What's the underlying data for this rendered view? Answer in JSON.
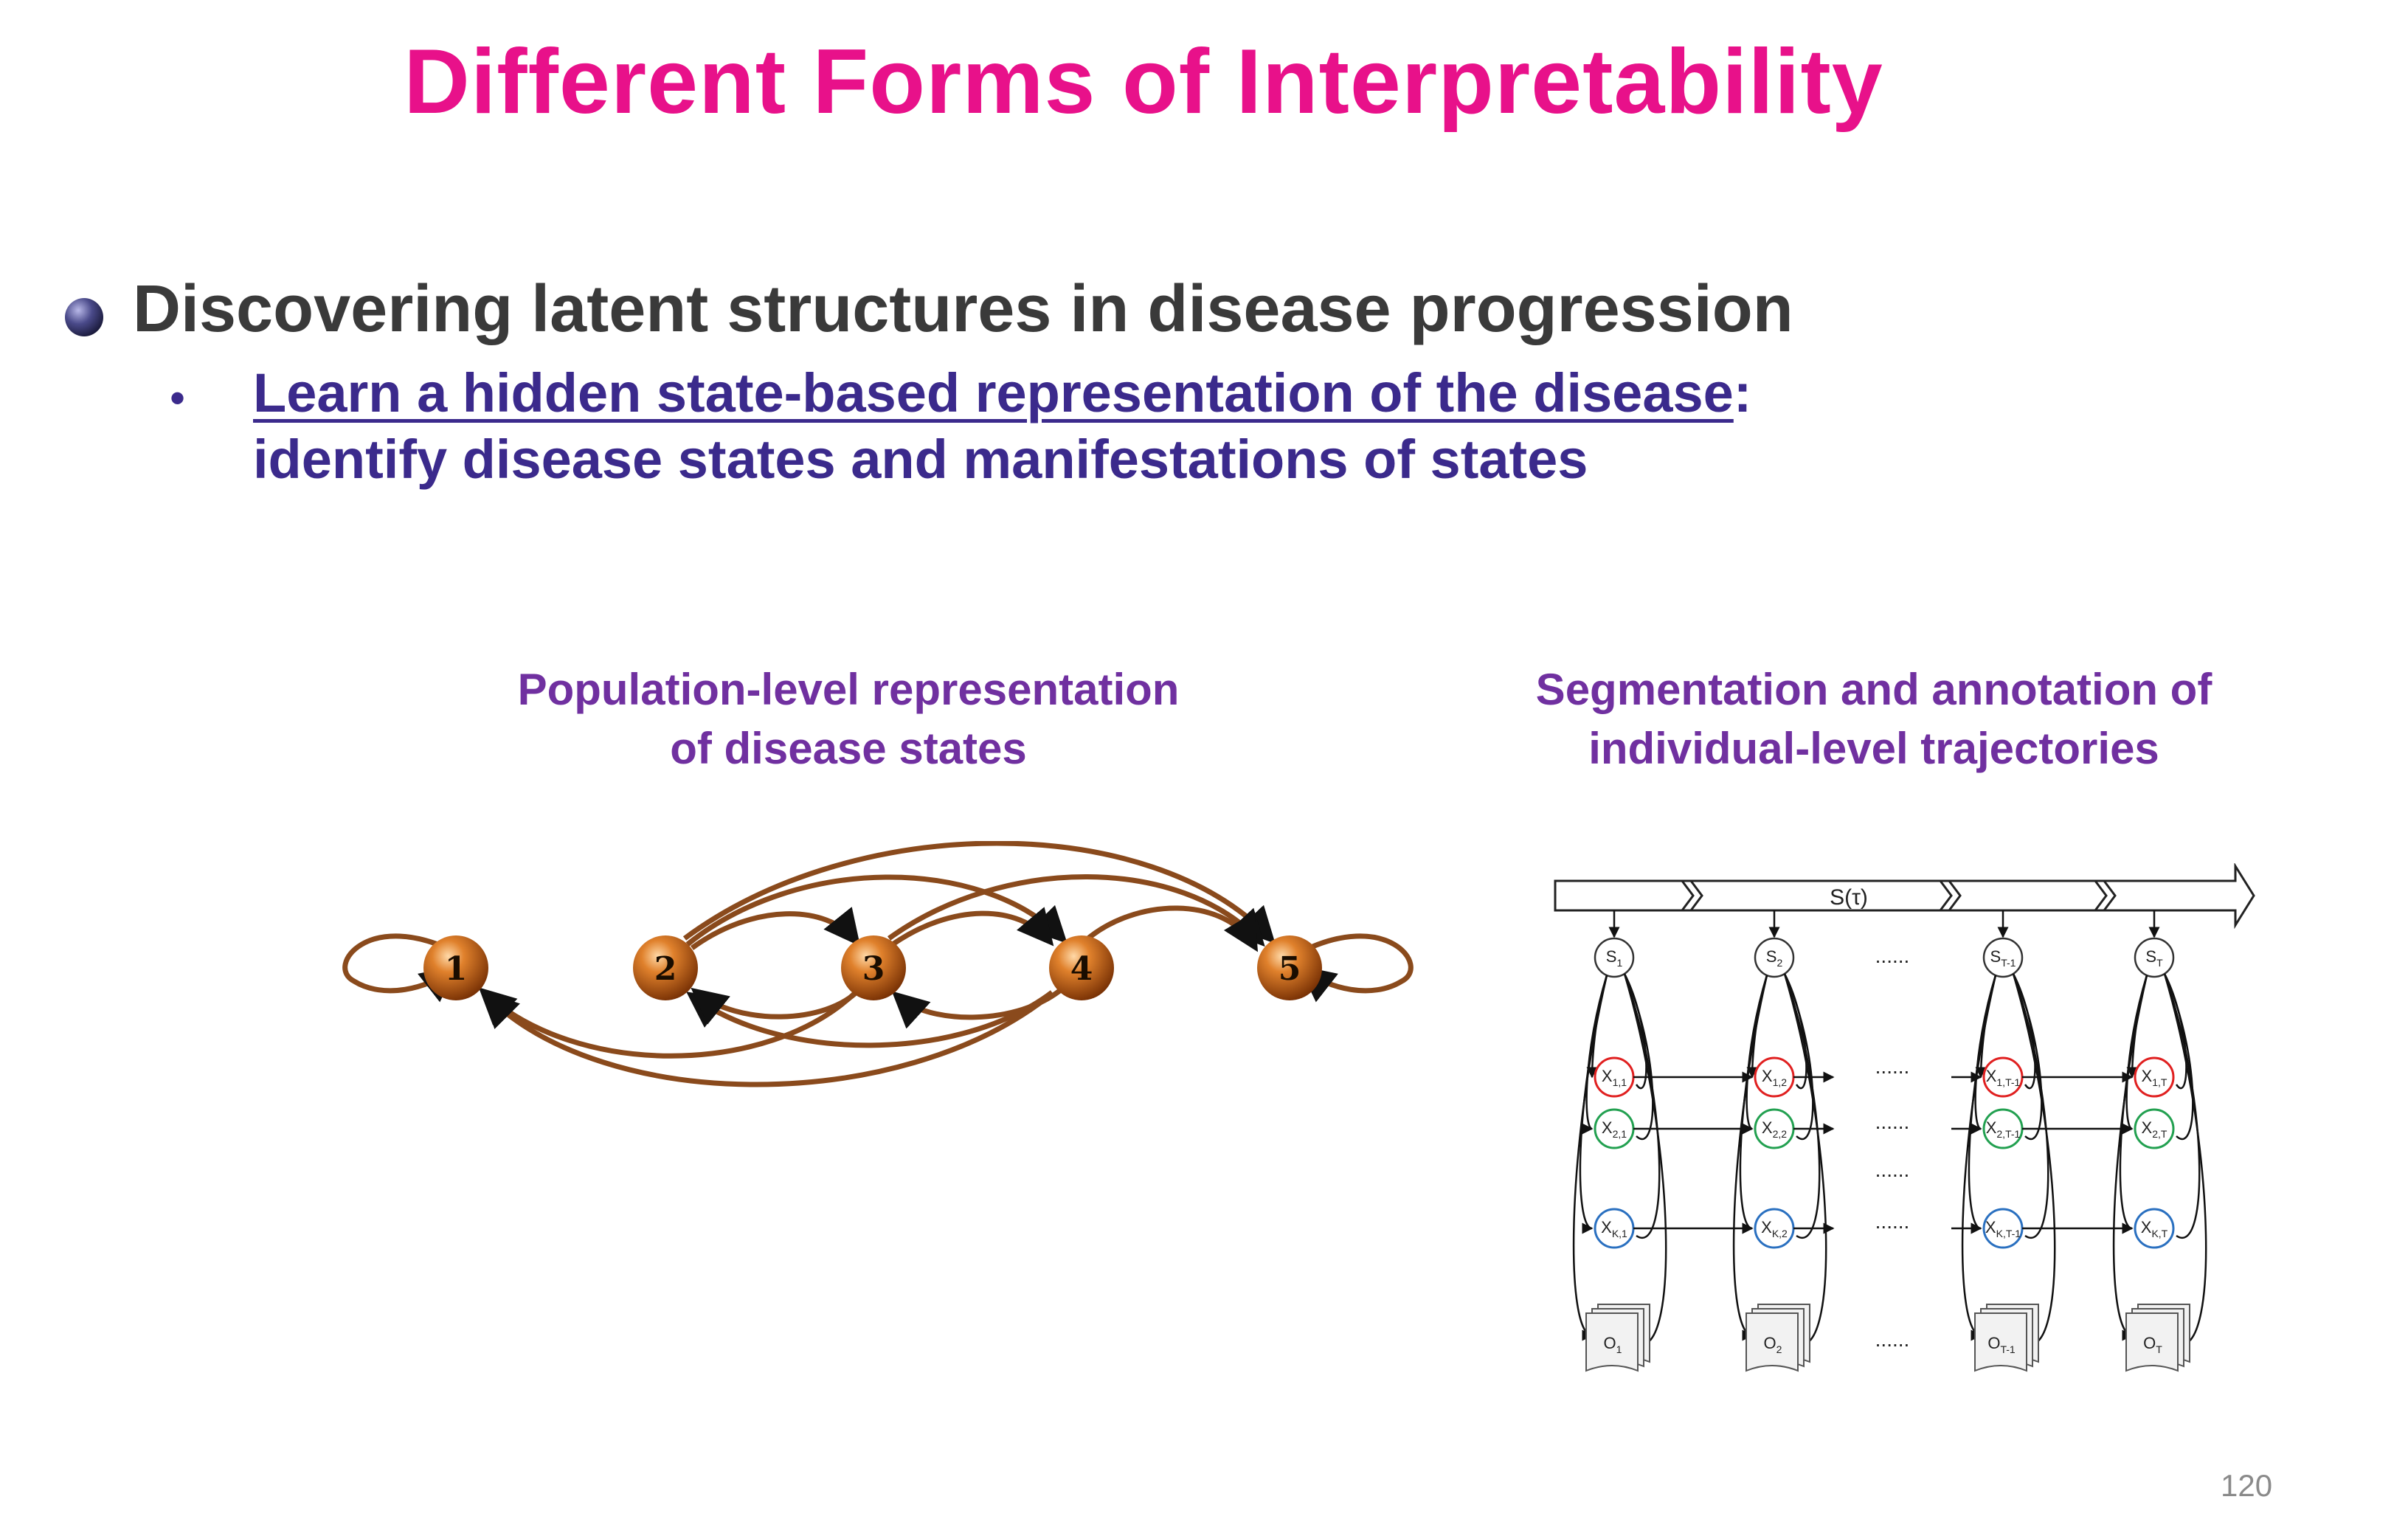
{
  "title": "Different Forms of Interpretability",
  "bullet": {
    "main": "Discovering latent structures in disease progression",
    "sub_marker": "•",
    "sub_link": "Learn a hidden state-based representation of the disease",
    "sub_colon": ":",
    "sub_line2": "identify disease states and manifestations of states"
  },
  "left_figure": {
    "caption_line1": "Population-level representation",
    "caption_line2": "of disease states",
    "states": [
      "1",
      "2",
      "3",
      "4",
      "5"
    ]
  },
  "right_figure": {
    "caption_line1": "Segmentation and annotation of",
    "caption_line2": "individual-level trajectories",
    "timeline_label": "S(τ)",
    "ellipsis": "......",
    "columns": [
      {
        "s_base": "S",
        "s_sub": "1",
        "x1_sub": "1,1",
        "x2_sub": "2,1",
        "xk_sub": "K,1",
        "o_sub": "1"
      },
      {
        "s_base": "S",
        "s_sub": "2",
        "x1_sub": "1,2",
        "x2_sub": "2,2",
        "xk_sub": "K,2",
        "o_sub": "2"
      },
      {
        "s_base": "S",
        "s_sub": "T-1",
        "x1_sub": "1,T-1",
        "x2_sub": "2,T-1",
        "xk_sub": "K,T-1",
        "o_sub": "T-1"
      },
      {
        "s_base": "S",
        "s_sub": "T",
        "x1_sub": "1,T",
        "x2_sub": "2,T",
        "xk_sub": "K,T",
        "o_sub": "T"
      }
    ],
    "x_base": "X",
    "o_base": "O",
    "colors": {
      "x1": "#e02020",
      "x2": "#22a050",
      "xk": "#2a70c0"
    }
  },
  "page_number": "120",
  "colors": {
    "title": "#e8118a",
    "sub": "#3b2a8c",
    "caption": "#7030a0",
    "node": "#c8661a"
  }
}
